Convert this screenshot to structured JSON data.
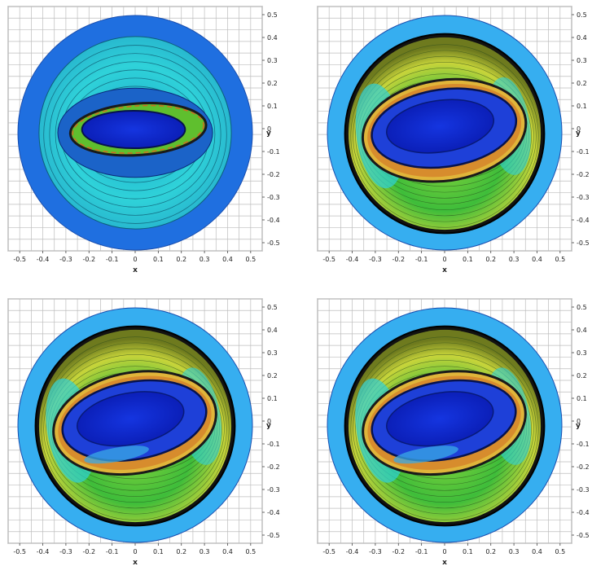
{
  "xticks": [
    "-0.5",
    "-0.4",
    "-0.3",
    "-0.2",
    "-0.1",
    "0",
    "0.1",
    "0.2",
    "0.3",
    "0.4",
    "0.5"
  ],
  "yticks": [
    "0.5",
    "0.4",
    "0.3",
    "0.2",
    "0.1",
    "0",
    "-0.1",
    "-0.2",
    "-0.3",
    "-0.4",
    "-0.5"
  ],
  "xlabel": "x",
  "ylabel": "y",
  "colors": {
    "outer_ring_dark": "#1f6fe0",
    "outer_ring_light": "#36aef0",
    "core_blue": "#1535e0",
    "deep_blue": "#0b1fb8",
    "green": "#3ebd3a",
    "yellow": "#d8d63a",
    "orange": "#d06a22",
    "cyan": "#2fd2d9",
    "grid": "#bdbdbd"
  },
  "panels": [
    {
      "name": "top-left",
      "variant": "early",
      "show_ylabel": true
    },
    {
      "name": "top-right",
      "variant": "mid",
      "show_ylabel": true
    },
    {
      "name": "bottom-left",
      "variant": "late",
      "show_ylabel": true
    },
    {
      "name": "bottom-right",
      "variant": "late2",
      "show_ylabel": true
    }
  ]
}
